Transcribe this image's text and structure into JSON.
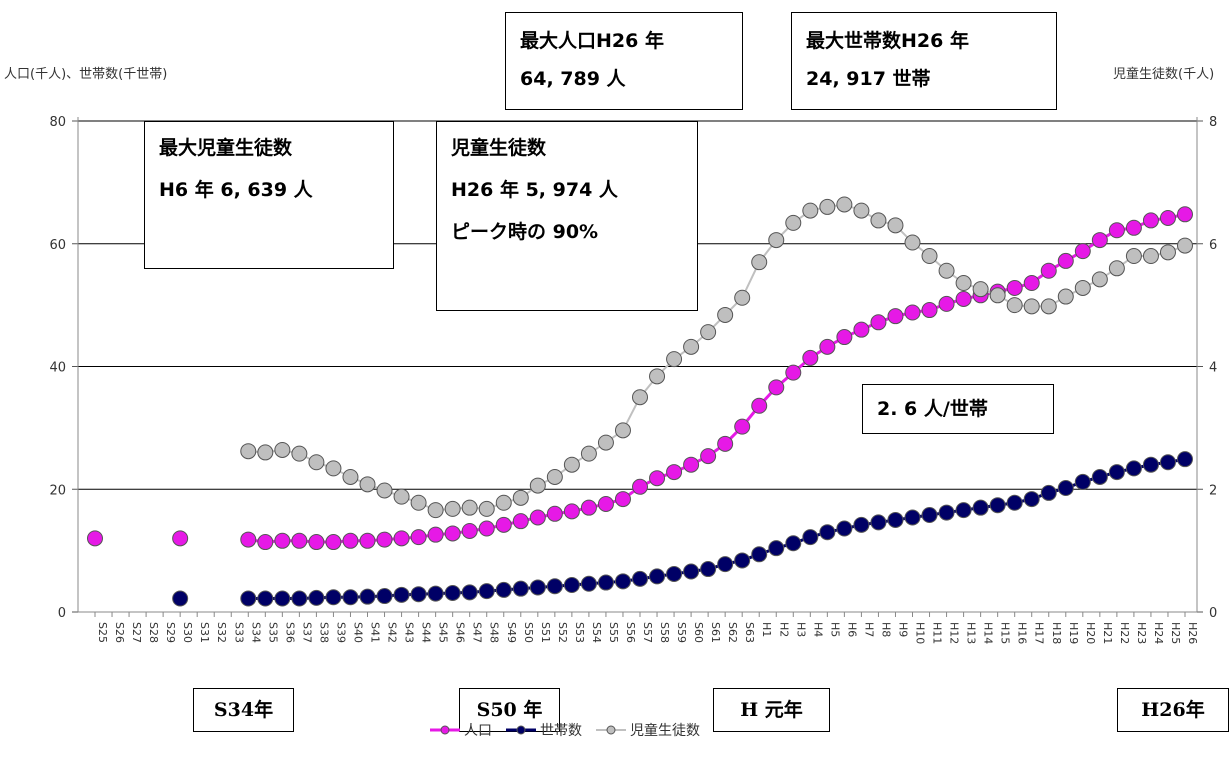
{
  "chart_data": {
    "type": "line",
    "left_axis_title": "人口(千人)、世帯数(千世帯)",
    "right_axis_title": "児童生徒数(千人)",
    "left_ticks": [
      "0",
      "20",
      "40",
      "60",
      "80"
    ],
    "right_ticks": [
      "0",
      "2",
      "4",
      "6",
      "8"
    ],
    "ylim_left": [
      0,
      80
    ],
    "ylim_right": [
      0,
      8
    ],
    "categories": [
      "S25",
      "S26",
      "S27",
      "S28",
      "S29",
      "S30",
      "S31",
      "S32",
      "S33",
      "S34",
      "S35",
      "S36",
      "S37",
      "S38",
      "S39",
      "S40",
      "S41",
      "S42",
      "S43",
      "S44",
      "S45",
      "S46",
      "S47",
      "S48",
      "S49",
      "S50",
      "S51",
      "S52",
      "S53",
      "S54",
      "S55",
      "S56",
      "S57",
      "S58",
      "S59",
      "S60",
      "S61",
      "S62",
      "S63",
      "H1",
      "H2",
      "H3",
      "H4",
      "H5",
      "H6",
      "H7",
      "H8",
      "H9",
      "H10",
      "H11",
      "H12",
      "H13",
      "H14",
      "H15",
      "H16",
      "H17",
      "H18",
      "H19",
      "H20",
      "H21",
      "H22",
      "H23",
      "H24",
      "H25",
      "H26"
    ],
    "series": [
      {
        "name": "人口",
        "axis": "left",
        "color": "#e619e6",
        "line": "#e619e6",
        "values": [
          12.0,
          null,
          null,
          null,
          null,
          12.0,
          null,
          null,
          null,
          11.8,
          11.4,
          11.6,
          11.6,
          11.4,
          11.4,
          11.6,
          11.6,
          11.8,
          12.0,
          12.2,
          12.6,
          12.8,
          13.2,
          13.6,
          14.2,
          14.8,
          15.4,
          16.0,
          16.4,
          17.0,
          17.6,
          18.4,
          20.4,
          21.8,
          22.8,
          24.0,
          25.4,
          27.4,
          30.2,
          33.6,
          36.6,
          39.0,
          41.4,
          43.2,
          44.8,
          46.0,
          47.2,
          48.2,
          48.8,
          49.2,
          50.2,
          51.0,
          51.6,
          52.2,
          52.8,
          53.6,
          55.6,
          57.2,
          58.8,
          60.6,
          62.2,
          62.6,
          63.8,
          64.2,
          64.8
        ]
      },
      {
        "name": "世帯数",
        "axis": "left",
        "color": "#000066",
        "line": "#000066",
        "values": [
          null,
          null,
          null,
          null,
          null,
          2.2,
          null,
          null,
          null,
          2.2,
          2.2,
          2.2,
          2.2,
          2.3,
          2.4,
          2.4,
          2.5,
          2.6,
          2.8,
          2.9,
          3.0,
          3.1,
          3.2,
          3.4,
          3.6,
          3.8,
          4.0,
          4.2,
          4.4,
          4.6,
          4.8,
          5.0,
          5.4,
          5.8,
          6.2,
          6.6,
          7.0,
          7.8,
          8.4,
          9.4,
          10.4,
          11.2,
          12.2,
          13.0,
          13.6,
          14.2,
          14.6,
          15.0,
          15.4,
          15.8,
          16.2,
          16.6,
          17.0,
          17.4,
          17.8,
          18.4,
          19.4,
          20.2,
          21.2,
          22.0,
          22.8,
          23.4,
          24.0,
          24.4,
          24.9
        ]
      },
      {
        "name": "児童生徒数",
        "axis": "right",
        "color": "#bfbfbf",
        "line": "#c0c0c0",
        "values": [
          null,
          null,
          null,
          null,
          null,
          null,
          null,
          null,
          null,
          2.62,
          2.6,
          2.64,
          2.58,
          2.44,
          2.34,
          2.2,
          2.08,
          1.98,
          1.88,
          1.78,
          1.66,
          1.68,
          1.7,
          1.68,
          1.78,
          1.86,
          2.06,
          2.2,
          2.4,
          2.58,
          2.76,
          2.96,
          3.5,
          3.84,
          4.12,
          4.32,
          4.56,
          4.84,
          5.12,
          5.7,
          6.06,
          6.34,
          6.54,
          6.6,
          6.64,
          6.54,
          6.38,
          6.3,
          6.02,
          5.8,
          5.56,
          5.36,
          5.26,
          5.16,
          5.0,
          4.98,
          4.98,
          5.14,
          5.28,
          5.42,
          5.6,
          5.8,
          5.8,
          5.86,
          5.97
        ]
      }
    ]
  },
  "callouts": {
    "max_pop": {
      "line1": "最大人口H26 年",
      "line2": "64, 789 人"
    },
    "max_household": {
      "line1": "最大世帯数H26 年",
      "line2": "24, 917 世帯"
    },
    "max_students": {
      "line1": "最大児童生徒数",
      "line2": "H6 年 6, 639 人"
    },
    "students_now": {
      "line1": "児童生徒数",
      "line2": "H26 年 5, 974 人",
      "line3": "ピーク時の 90%"
    },
    "per_household": {
      "line1": "2. 6 人/世帯"
    }
  },
  "eras": {
    "s34": "S34年",
    "s50": "S50 年",
    "h1": "H 元年",
    "h26": "H26年"
  }
}
